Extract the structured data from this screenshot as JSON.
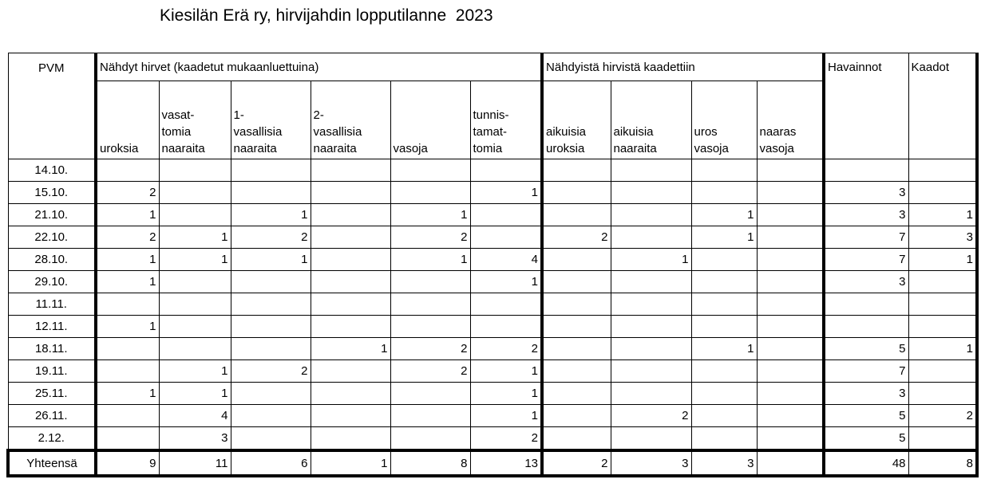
{
  "title": "Kiesilän Erä ry, hirvijahdin lopputilanne  2023",
  "headers": {
    "pvm": "PVM",
    "group_seen": "Nähdyt hirvet (kaadetut mukaanluettuina)",
    "group_shot": "Nähdyistä hirvistä kaadettiin",
    "havainnot": "Havainnot",
    "kaadot": "Kaadot",
    "columns": [
      [
        "",
        "",
        "uroksia"
      ],
      [
        "vasat-",
        "tomia",
        "naaraita"
      ],
      [
        "1-",
        "vasallisia",
        "naaraita"
      ],
      [
        "2-",
        "vasallisia",
        "naaraita"
      ],
      [
        "",
        "",
        "vasoja"
      ],
      [
        "tunnis-",
        "tamat-",
        "tomia"
      ],
      [
        "",
        "aikuisia",
        "uroksia"
      ],
      [
        "",
        "aikuisia",
        "naaraita"
      ],
      [
        "",
        "uros",
        "vasoja"
      ],
      [
        "",
        "naaras",
        "vasoja"
      ]
    ]
  },
  "rows": [
    {
      "date": "14.10.",
      "values": [
        "",
        "",
        "",
        "",
        "",
        "",
        "",
        "",
        "",
        "",
        "",
        ""
      ]
    },
    {
      "date": "15.10.",
      "values": [
        "2",
        "",
        "",
        "",
        "",
        "1",
        "",
        "",
        "",
        "",
        "3",
        ""
      ]
    },
    {
      "date": "21.10.",
      "values": [
        "1",
        "",
        "1",
        "",
        "1",
        "",
        "",
        "",
        "1",
        "",
        "3",
        "1"
      ]
    },
    {
      "date": "22.10.",
      "values": [
        "2",
        "1",
        "2",
        "",
        "2",
        "",
        "2",
        "",
        "1",
        "",
        "7",
        "3"
      ]
    },
    {
      "date": "28.10.",
      "values": [
        "1",
        "1",
        "1",
        "",
        "1",
        "4",
        "",
        "1",
        "",
        "",
        "7",
        "1"
      ]
    },
    {
      "date": "29.10.",
      "values": [
        "1",
        "",
        "",
        "",
        "",
        "1",
        "",
        "",
        "",
        "",
        "3",
        ""
      ]
    },
    {
      "date": "11.11.",
      "values": [
        "",
        "",
        "",
        "",
        "",
        "",
        "",
        "",
        "",
        "",
        "",
        ""
      ]
    },
    {
      "date": "12.11.",
      "values": [
        "1",
        "",
        "",
        "",
        "",
        "",
        "",
        "",
        "",
        "",
        "",
        ""
      ]
    },
    {
      "date": "18.11.",
      "values": [
        "",
        "",
        "",
        "1",
        "2",
        "2",
        "",
        "",
        "1",
        "",
        "5",
        "1"
      ]
    },
    {
      "date": "19.11.",
      "values": [
        "",
        "1",
        "2",
        "",
        "2",
        "1",
        "",
        "",
        "",
        "",
        "7",
        ""
      ]
    },
    {
      "date": "25.11.",
      "values": [
        "1",
        "1",
        "",
        "",
        "",
        "1",
        "",
        "",
        "",
        "",
        "3",
        ""
      ]
    },
    {
      "date": "26.11.",
      "values": [
        "",
        "4",
        "",
        "",
        "",
        "1",
        "",
        "2",
        "",
        "",
        "5",
        "2"
      ]
    },
    {
      "date": "2.12.",
      "values": [
        "",
        "3",
        "",
        "",
        "",
        "2",
        "",
        "",
        "",
        "",
        "5",
        ""
      ]
    }
  ],
  "total": {
    "label": "Yhteensä",
    "values": [
      "9",
      "11",
      "6",
      "1",
      "8",
      "13",
      "2",
      "3",
      "3",
      "",
      "48",
      "8"
    ]
  }
}
